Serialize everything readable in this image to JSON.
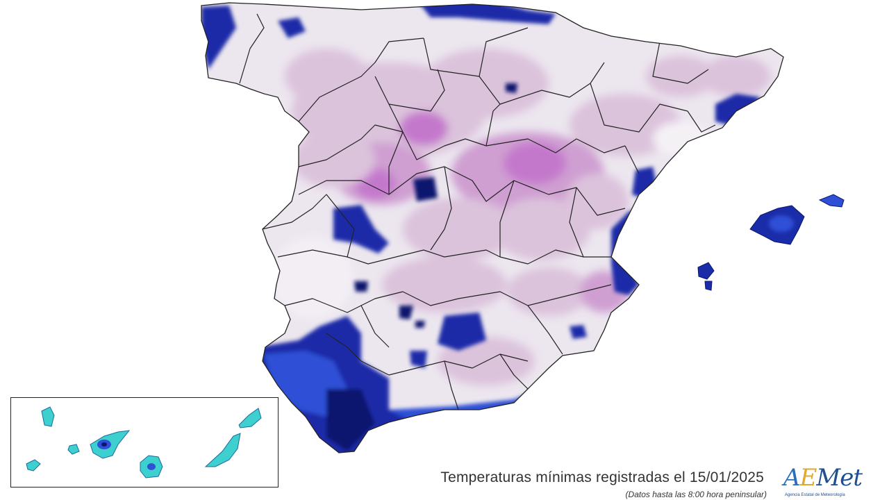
{
  "map": {
    "caption": "Temperaturas mínimas registradas el 15/01/2025",
    "subcaption": "(Datos hasta las 8:00 hora peninsular)",
    "legend_colors": {
      "background": "#ffffff",
      "mild_land": "#ece6ef",
      "warm_light": "#dcc3dc",
      "warm_medium": "#cf9fd2",
      "warm_strong": "#c478cc",
      "cold_light": "#2e4fd6",
      "cold_medium": "#1a2ca8",
      "cold_dark": "#0b176e",
      "canary_cyan": "#3ed0cf",
      "border_line": "#222222"
    },
    "regions": [
      "Península",
      "Baleares",
      "Canarias"
    ]
  },
  "logo": {
    "text_a": "A",
    "text_e": "E",
    "text_rest": "Met",
    "subtitle": "Agencia Estatal de Meteorología"
  }
}
